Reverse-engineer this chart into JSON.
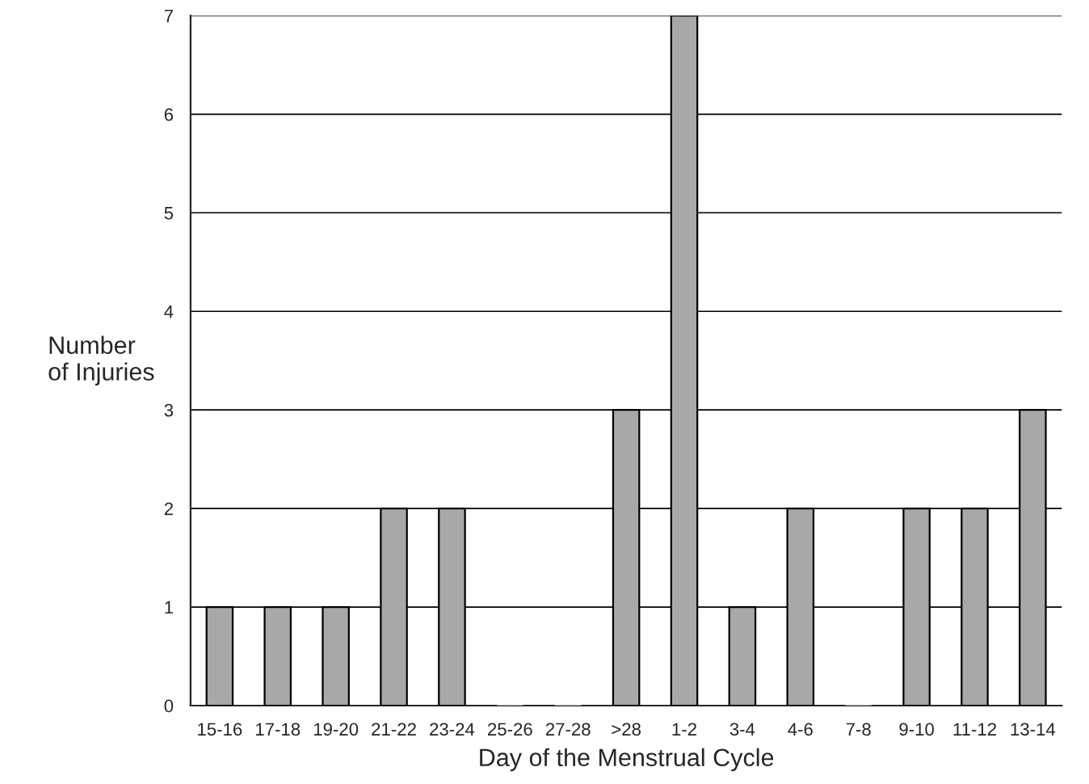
{
  "chart_data": {
    "type": "bar",
    "xlabel": "Day of the Menstrual Cycle",
    "ylabel": "Number\nof Injuries",
    "categories": [
      "15-16",
      "17-18",
      "19-20",
      "21-22",
      "23-24",
      "25-26",
      "27-28",
      ">28",
      "1-2",
      "3-4",
      "4-6",
      "7-8",
      "9-10",
      "11-12",
      "13-14"
    ],
    "values": [
      1,
      1,
      1,
      2,
      2,
      0,
      0,
      3,
      7,
      1,
      2,
      0,
      2,
      2,
      3
    ],
    "color": "#a8a8a8",
    "ylim": [
      0,
      7
    ],
    "yticks": [
      0,
      1,
      2,
      3,
      4,
      5,
      6,
      7
    ],
    "grid": "y"
  }
}
